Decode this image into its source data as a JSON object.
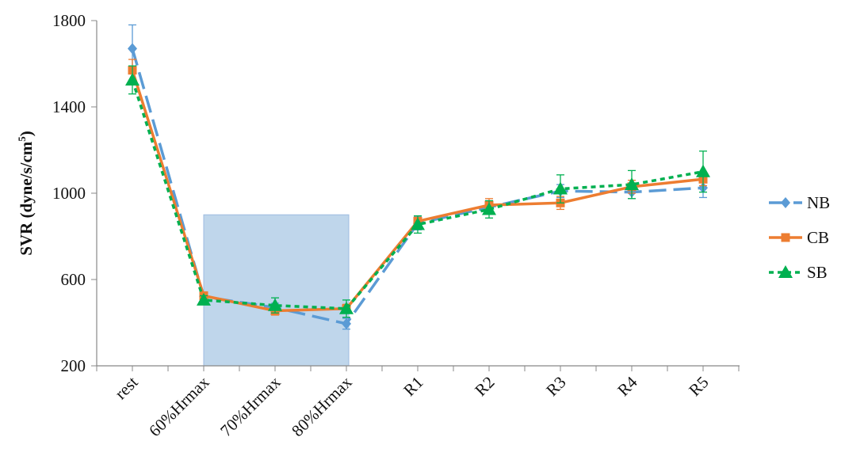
{
  "chart_data": {
    "type": "line",
    "y_label": {
      "text": "SVR (dyne/s/cm",
      "superscript": "5",
      "suffix": ")"
    },
    "categories": [
      "rest",
      "60%Hrmax",
      "70%Hrmax",
      "80%Hrmax",
      "R1",
      "R2",
      "R3",
      "R4",
      "R5"
    ],
    "series": [
      {
        "name": "NB",
        "color": "#5b9bd5",
        "dash": "long",
        "marker": "diamond",
        "values": [
          1670,
          520,
          470,
          395,
          860,
          935,
          1010,
          1005,
          1025
        ],
        "errors": [
          110,
          20,
          20,
          25,
          30,
          30,
          30,
          30,
          45
        ]
      },
      {
        "name": "CB",
        "color": "#ed7d31",
        "dash": "solid",
        "marker": "square",
        "values": [
          1570,
          525,
          455,
          465,
          870,
          945,
          955,
          1030,
          1065
        ],
        "errors": [
          50,
          15,
          20,
          20,
          25,
          30,
          30,
          30,
          30
        ]
      },
      {
        "name": "SB",
        "color": "#00b050",
        "dash": "dotted",
        "marker": "triangle",
        "values": [
          1525,
          505,
          480,
          465,
          855,
          925,
          1020,
          1040,
          1100
        ],
        "errors": [
          65,
          20,
          35,
          40,
          40,
          40,
          65,
          65,
          95
        ]
      }
    ],
    "shaded_region": {
      "x": [
        "60%Hrmax",
        "80%Hrmax"
      ],
      "ylim": [
        200,
        900
      ],
      "color": "#b4cfe8"
    },
    "ylim": [
      200,
      1800
    ],
    "yticks": [
      200,
      600,
      1000,
      1400,
      1800
    ],
    "grid": false,
    "legend": "right"
  }
}
